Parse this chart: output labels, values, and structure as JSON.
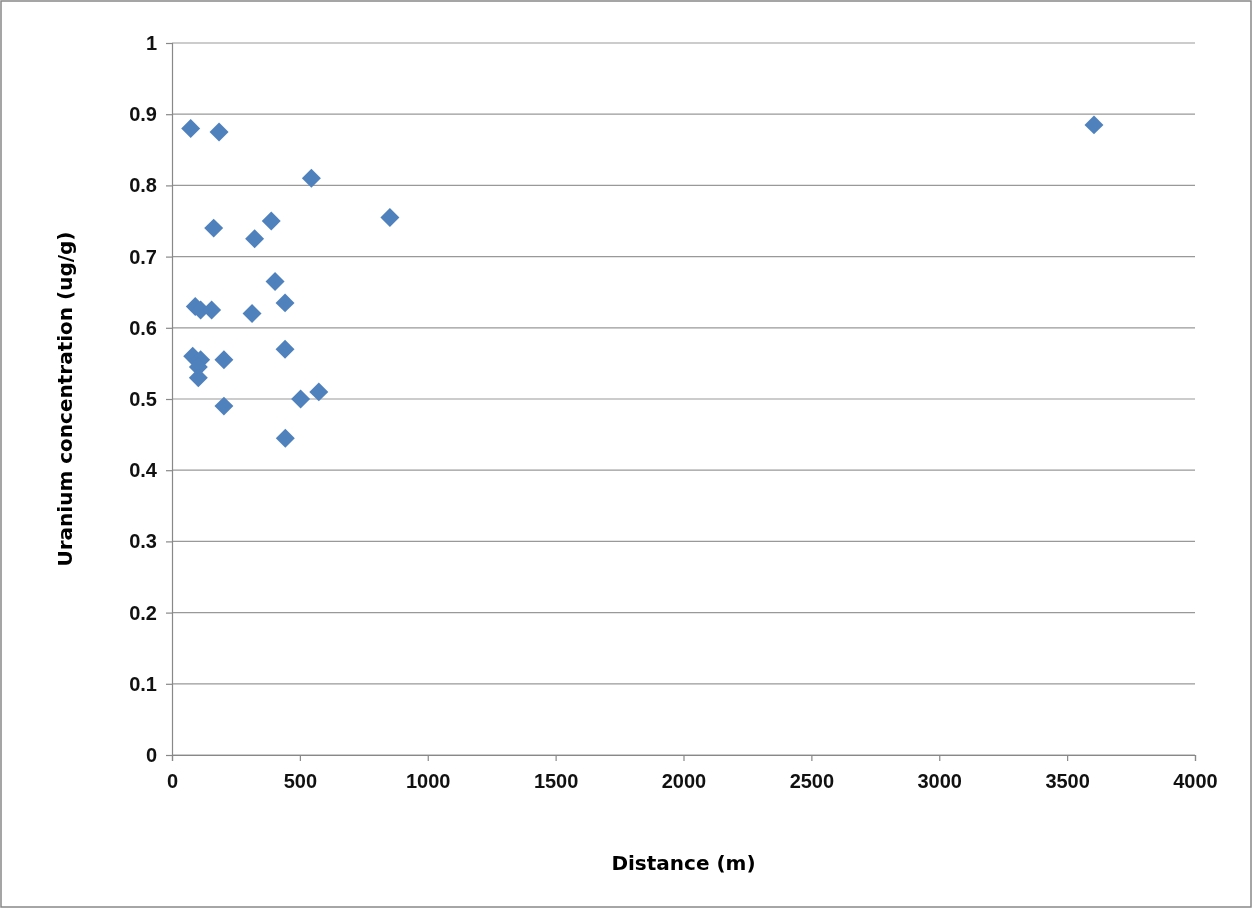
{
  "chart_data": {
    "type": "scatter",
    "xlabel": "Distance (m)",
    "ylabel": "Uranium concentration (ug/g)",
    "x": [
      73,
      184,
      545,
      852,
      163,
      388,
      323,
      403,
      442,
      91,
      112,
      155,
      313,
      442,
      81,
      112,
      203,
      103,
      103,
      203,
      503,
      574,
      443,
      3605
    ],
    "series": [
      {
        "color": "#4f81bd",
        "values": [
          0.88,
          0.875,
          0.81,
          0.755,
          0.74,
          0.75,
          0.725,
          0.665,
          0.635,
          0.63,
          0.625,
          0.625,
          0.62,
          0.57,
          0.56,
          0.555,
          0.555,
          0.545,
          0.53,
          0.49,
          0.5,
          0.51,
          0.445,
          0.885
        ]
      }
    ],
    "xlim": [
      0,
      4000
    ],
    "xticks": [
      0,
      500,
      1000,
      1500,
      2000,
      2500,
      3000,
      3500,
      4000
    ],
    "ylim": [
      0,
      1
    ],
    "yticks": [
      {
        "value": 0,
        "label": "0"
      },
      {
        "value": 0.1,
        "label": "0.1"
      },
      {
        "value": 0.2,
        "label": "0.2"
      },
      {
        "value": 0.3,
        "label": "0.3"
      },
      {
        "value": 0.4,
        "label": "0.4"
      },
      {
        "value": 0.5,
        "label": "0.5"
      },
      {
        "value": 0.6,
        "label": "0.6"
      },
      {
        "value": 0.7,
        "label": "0.7"
      },
      {
        "value": 0.8,
        "label": "0.8"
      },
      {
        "value": 0.9,
        "label": "0.9"
      },
      {
        "value": 1,
        "label": "1"
      }
    ],
    "grid": "y",
    "marker": "diamond"
  }
}
